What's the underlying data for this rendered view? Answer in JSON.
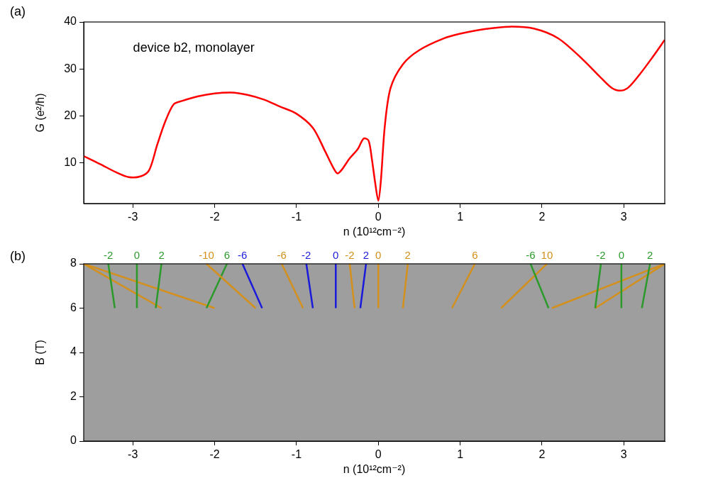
{
  "chart_data": [
    {
      "type": "line",
      "panel": "(a)",
      "annotations": [
        "device b2, monolayer"
      ],
      "x_label": "n (10¹²cm⁻²)",
      "y_label": "G (e²/h)",
      "x": [
        -3.6,
        -3.4,
        -3.2,
        -3.05,
        -2.9,
        -2.8,
        -2.7,
        -2.6,
        -2.5,
        -2.4,
        -2.2,
        -2.0,
        -1.8,
        -1.6,
        -1.4,
        -1.2,
        -1.0,
        -0.8,
        -0.65,
        -0.55,
        -0.5,
        -0.45,
        -0.35,
        -0.25,
        -0.18,
        -0.12,
        -0.08,
        -0.04,
        0.0,
        0.03,
        0.08,
        0.15,
        0.3,
        0.5,
        0.8,
        1.0,
        1.3,
        1.6,
        1.9,
        2.2,
        2.5,
        2.7,
        2.85,
        2.95,
        3.05,
        3.2,
        3.35,
        3.5
      ],
      "values": [
        11.5,
        9.8,
        8.0,
        7.0,
        7.2,
        8.5,
        14.0,
        19.0,
        22.5,
        23.2,
        24.2,
        24.8,
        25.0,
        24.5,
        23.5,
        22.0,
        20.5,
        17.5,
        12.5,
        9.0,
        7.8,
        8.5,
        11.0,
        13.0,
        15.2,
        14.8,
        11.0,
        6.0,
        2.0,
        6.0,
        18.0,
        26.0,
        31.0,
        34.0,
        36.5,
        37.5,
        38.5,
        39.0,
        38.6,
        36.5,
        32.0,
        28.5,
        26.0,
        25.4,
        26.0,
        29.0,
        32.5,
        36.2
      ],
      "color": "#ff0000",
      "xlim": [
        -3.6,
        3.5
      ],
      "xticks": [
        -3,
        -2,
        -1,
        0,
        1,
        2,
        3
      ],
      "ylim": [
        1.4,
        40
      ],
      "yticks": [
        10,
        20,
        30,
        40
      ],
      "grid": false
    },
    {
      "type": "line",
      "panel": "(b)",
      "x_label": "n (10¹²cm⁻²)",
      "y_label": "B (T)",
      "segments": [
        {
          "label": "-2",
          "color": "#2b9a2b",
          "n": [
            -3.3,
            -3.22
          ],
          "B": [
            8,
            6
          ]
        },
        {
          "label": "0",
          "color": "#2b9a2b",
          "n": [
            -2.95,
            -2.95
          ],
          "B": [
            8,
            6
          ]
        },
        {
          "label": "2",
          "color": "#2b9a2b",
          "n": [
            -2.65,
            -2.72
          ],
          "B": [
            8,
            6
          ]
        },
        {
          "label": "-10",
          "color": "#d4901c",
          "n": [
            -2.1,
            -1.5
          ],
          "B": [
            8,
            6
          ]
        },
        {
          "label": "6",
          "color": "#2b9a2b",
          "n": [
            -1.85,
            -2.1
          ],
          "B": [
            8,
            6
          ]
        },
        {
          "label": "-6",
          "color": "#1a1adc",
          "n": [
            -1.66,
            -1.42
          ],
          "B": [
            8,
            6
          ]
        },
        {
          "label": "-6",
          "color": "#d4901c",
          "n": [
            -1.18,
            -0.92
          ],
          "B": [
            8,
            6
          ]
        },
        {
          "label": "-2",
          "color": "#1a1adc",
          "n": [
            -0.88,
            -0.8
          ],
          "B": [
            8,
            6
          ]
        },
        {
          "label": "0",
          "color": "#1a1adc",
          "n": [
            -0.52,
            -0.52
          ],
          "B": [
            8,
            6
          ]
        },
        {
          "label": "-2",
          "color": "#d4901c",
          "n": [
            -0.35,
            -0.29
          ],
          "B": [
            8,
            6
          ]
        },
        {
          "label": "2",
          "color": "#1a1adc",
          "n": [
            -0.15,
            -0.22
          ],
          "B": [
            8,
            6
          ]
        },
        {
          "label": "0",
          "color": "#d4901c",
          "n": [
            0.0,
            0.0
          ],
          "B": [
            8,
            6
          ]
        },
        {
          "label": "2",
          "color": "#d4901c",
          "n": [
            0.36,
            0.3
          ],
          "B": [
            8,
            6
          ]
        },
        {
          "label": "6",
          "color": "#d4901c",
          "n": [
            1.18,
            0.9
          ],
          "B": [
            8,
            6
          ]
        },
        {
          "label": "-6",
          "color": "#2b9a2b",
          "n": [
            1.86,
            2.08
          ],
          "B": [
            8,
            6
          ]
        },
        {
          "label": "10",
          "color": "#d4901c",
          "n": [
            2.06,
            1.5
          ],
          "B": [
            8,
            6
          ]
        },
        {
          "label": "-2",
          "color": "#2b9a2b",
          "n": [
            2.72,
            2.65
          ],
          "B": [
            8,
            6
          ]
        },
        {
          "label": "0",
          "color": "#2b9a2b",
          "n": [
            2.97,
            2.97
          ],
          "B": [
            8,
            6
          ]
        },
        {
          "label": "2",
          "color": "#2b9a2b",
          "n": [
            3.32,
            3.22
          ],
          "B": [
            8,
            6
          ]
        },
        {
          "color": "#d4901c",
          "n": [
            -3.6,
            -2.65
          ],
          "B": [
            8,
            6
          ]
        },
        {
          "color": "#d4901c",
          "n": [
            -3.6,
            -2.0
          ],
          "B": [
            8,
            6
          ]
        },
        {
          "color": "#d4901c",
          "n": [
            3.5,
            2.65
          ],
          "B": [
            8,
            6
          ]
        },
        {
          "color": "#d4901c",
          "n": [
            3.5,
            2.12
          ],
          "B": [
            8,
            6
          ]
        }
      ],
      "xlim": [
        -3.6,
        3.5
      ],
      "xticks": [
        -3,
        -2,
        -1,
        0,
        1,
        2,
        3
      ],
      "ylim": [
        0,
        8
      ],
      "yticks": [
        0,
        2,
        4,
        6,
        8
      ],
      "grid": false
    }
  ]
}
